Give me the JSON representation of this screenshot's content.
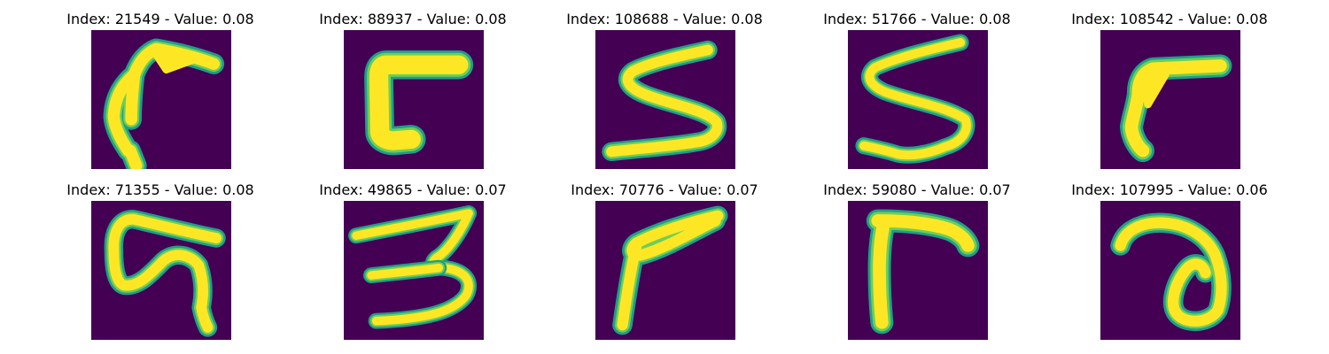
{
  "colors": {
    "background": "#440154",
    "stroke_outer": "#1f9e89",
    "stroke_mid": "#6ece58",
    "stroke_core": "#fde725"
  },
  "images": [
    {
      "index_label": "Index: 21549 - Value: 0.08",
      "depicts": "handwritten curved stroke"
    },
    {
      "index_label": "Index: 88937 - Value: 0.08",
      "depicts": "handwritten bracket-like stroke"
    },
    {
      "index_label": "Index: 108688 - Value: 0.08",
      "depicts": "handwritten digit 5 / letter S"
    },
    {
      "index_label": "Index: 51766 - Value: 0.08",
      "depicts": "handwritten digit 5 / letter S"
    },
    {
      "index_label": "Index: 108542 - Value: 0.08",
      "depicts": "handwritten curved stroke"
    },
    {
      "index_label": "Index: 71355 - Value: 0.08",
      "depicts": "handwritten glyph"
    },
    {
      "index_label": "Index: 49865 - Value: 0.07",
      "depicts": "handwritten digit 3"
    },
    {
      "index_label": "Index: 70776 - Value: 0.07",
      "depicts": "handwritten angled stroke"
    },
    {
      "index_label": "Index: 59080 - Value: 0.07",
      "depicts": "handwritten angled stroke"
    },
    {
      "index_label": "Index: 107995 - Value: 0.06",
      "depicts": "handwritten letter a"
    }
  ]
}
